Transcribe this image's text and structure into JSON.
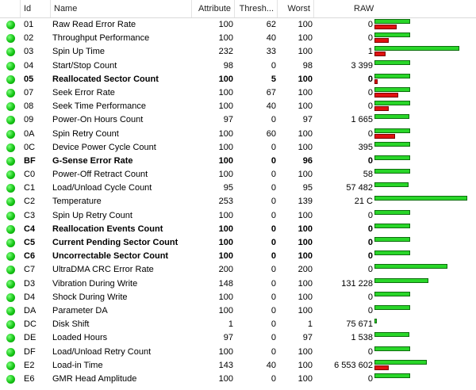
{
  "columns": {
    "id": "Id",
    "name": "Name",
    "attribute": "Attribute",
    "threshold": "Thresh...",
    "worst": "Worst",
    "raw": "RAW"
  },
  "colors": {
    "status_ok": "#14c414",
    "bar_green": "#29d629",
    "bar_red": "#e01010"
  },
  "rows": [
    {
      "id": "01",
      "name": "Raw Read Error Rate",
      "attribute": "100",
      "threshold": "62",
      "worst": "100",
      "raw": "0",
      "bold": false,
      "green_level": 0.36,
      "red_level": 0.22
    },
    {
      "id": "02",
      "name": "Throughput Performance",
      "attribute": "100",
      "threshold": "40",
      "worst": "100",
      "raw": "0",
      "bold": false,
      "green_level": 0.36,
      "red_level": 0.14
    },
    {
      "id": "03",
      "name": "Spin Up Time",
      "attribute": "232",
      "threshold": "33",
      "worst": "100",
      "raw": "1",
      "bold": false,
      "green_level": 0.85,
      "red_level": 0.11
    },
    {
      "id": "04",
      "name": "Start/Stop Count",
      "attribute": "98",
      "threshold": "0",
      "worst": "98",
      "raw": "3 399",
      "bold": false,
      "green_level": 0.36,
      "red_level": 0
    },
    {
      "id": "05",
      "name": "Reallocated Sector Count",
      "attribute": "100",
      "threshold": "5",
      "worst": "100",
      "raw": "0",
      "bold": true,
      "green_level": 0.36,
      "red_level": 0.03
    },
    {
      "id": "07",
      "name": "Seek Error Rate",
      "attribute": "100",
      "threshold": "67",
      "worst": "100",
      "raw": "0",
      "bold": false,
      "green_level": 0.36,
      "red_level": 0.24
    },
    {
      "id": "08",
      "name": "Seek Time Performance",
      "attribute": "100",
      "threshold": "40",
      "worst": "100",
      "raw": "0",
      "bold": false,
      "green_level": 0.36,
      "red_level": 0.14
    },
    {
      "id": "09",
      "name": "Power-On Hours Count",
      "attribute": "97",
      "threshold": "0",
      "worst": "97",
      "raw": "1 665",
      "bold": false,
      "green_level": 0.35,
      "red_level": 0
    },
    {
      "id": "0A",
      "name": "Spin Retry Count",
      "attribute": "100",
      "threshold": "60",
      "worst": "100",
      "raw": "0",
      "bold": false,
      "green_level": 0.36,
      "red_level": 0.21
    },
    {
      "id": "0C",
      "name": "Device Power Cycle Count",
      "attribute": "100",
      "threshold": "0",
      "worst": "100",
      "raw": "395",
      "bold": false,
      "green_level": 0.36,
      "red_level": 0
    },
    {
      "id": "BF",
      "name": "G-Sense Error Rate",
      "attribute": "100",
      "threshold": "0",
      "worst": "96",
      "raw": "0",
      "bold": true,
      "green_level": 0.36,
      "red_level": 0
    },
    {
      "id": "C0",
      "name": "Power-Off Retract Count",
      "attribute": "100",
      "threshold": "0",
      "worst": "100",
      "raw": "58",
      "bold": false,
      "green_level": 0.36,
      "red_level": 0
    },
    {
      "id": "C1",
      "name": "Load/Unload Cycle Count",
      "attribute": "95",
      "threshold": "0",
      "worst": "95",
      "raw": "57 482",
      "bold": false,
      "green_level": 0.34,
      "red_level": 0
    },
    {
      "id": "C2",
      "name": "Temperature",
      "attribute": "253",
      "threshold": "0",
      "worst": "139",
      "raw": "21 C",
      "bold": false,
      "green_level": 0.93,
      "red_level": 0
    },
    {
      "id": "C3",
      "name": "Spin Up Retry Count",
      "attribute": "100",
      "threshold": "0",
      "worst": "100",
      "raw": "0",
      "bold": false,
      "green_level": 0.36,
      "red_level": 0
    },
    {
      "id": "C4",
      "name": "Reallocation Events Count",
      "attribute": "100",
      "threshold": "0",
      "worst": "100",
      "raw": "0",
      "bold": true,
      "green_level": 0.36,
      "red_level": 0
    },
    {
      "id": "C5",
      "name": "Current Pending Sector Count",
      "attribute": "100",
      "threshold": "0",
      "worst": "100",
      "raw": "0",
      "bold": true,
      "green_level": 0.36,
      "red_level": 0
    },
    {
      "id": "C6",
      "name": "Uncorrectable Sector Count",
      "attribute": "100",
      "threshold": "0",
      "worst": "100",
      "raw": "0",
      "bold": true,
      "green_level": 0.36,
      "red_level": 0
    },
    {
      "id": "C7",
      "name": "UltraDMA CRC Error Rate",
      "attribute": "200",
      "threshold": "0",
      "worst": "200",
      "raw": "0",
      "bold": false,
      "green_level": 0.73,
      "red_level": 0
    },
    {
      "id": "D3",
      "name": "Vibration During Write",
      "attribute": "148",
      "threshold": "0",
      "worst": "100",
      "raw": "131 228",
      "bold": false,
      "green_level": 0.54,
      "red_level": 0
    },
    {
      "id": "D4",
      "name": "Shock During Write",
      "attribute": "100",
      "threshold": "0",
      "worst": "100",
      "raw": "0",
      "bold": false,
      "green_level": 0.36,
      "red_level": 0
    },
    {
      "id": "DA",
      "name": "Parameter DA",
      "attribute": "100",
      "threshold": "0",
      "worst": "100",
      "raw": "0",
      "bold": false,
      "green_level": 0.36,
      "red_level": 0
    },
    {
      "id": "DC",
      "name": "Disk Shift",
      "attribute": "1",
      "threshold": "0",
      "worst": "1",
      "raw": "75 671",
      "bold": false,
      "green_level": 0.01,
      "red_level": 0
    },
    {
      "id": "DE",
      "name": "Loaded Hours",
      "attribute": "97",
      "threshold": "0",
      "worst": "97",
      "raw": "1 538",
      "bold": false,
      "green_level": 0.35,
      "red_level": 0
    },
    {
      "id": "DF",
      "name": "Load/Unload Retry Count",
      "attribute": "100",
      "threshold": "0",
      "worst": "100",
      "raw": "0",
      "bold": false,
      "green_level": 0.36,
      "red_level": 0
    },
    {
      "id": "E2",
      "name": "Load-in Time",
      "attribute": "143",
      "threshold": "40",
      "worst": "100",
      "raw": "6 553 602",
      "bold": false,
      "green_level": 0.52,
      "red_level": 0.14
    },
    {
      "id": "E6",
      "name": "GMR Head Amplitude",
      "attribute": "100",
      "threshold": "0",
      "worst": "100",
      "raw": "0",
      "bold": false,
      "green_level": 0.36,
      "red_level": 0
    }
  ]
}
